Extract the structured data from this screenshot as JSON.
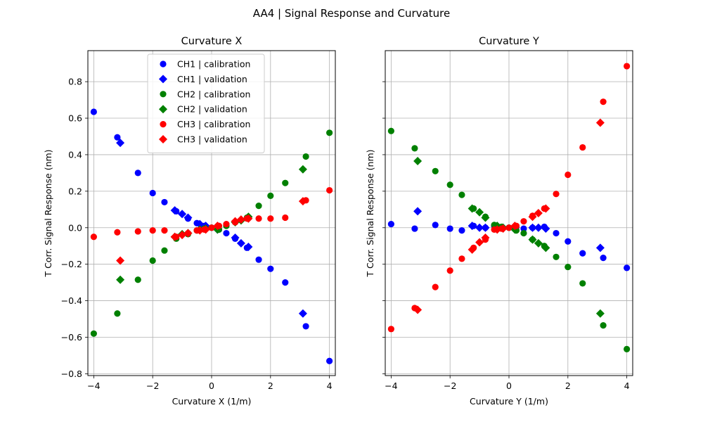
{
  "figure": {
    "suptitle": "AA4 | Signal Response and Curvature"
  },
  "legend_entries": [
    {
      "label": "CH1 | calibration",
      "color": "#0000ff",
      "marker": "circle"
    },
    {
      "label": "CH1 | validation",
      "color": "#0000ff",
      "marker": "diamond"
    },
    {
      "label": "CH2 | calibration",
      "color": "#008000",
      "marker": "circle"
    },
    {
      "label": "CH2 | validation",
      "color": "#008000",
      "marker": "diamond"
    },
    {
      "label": "CH3 | calibration",
      "color": "#ff0000",
      "marker": "circle"
    },
    {
      "label": "CH3 | validation",
      "color": "#ff0000",
      "marker": "diamond"
    }
  ],
  "chart_data": [
    {
      "type": "scatter",
      "title": "Curvature X",
      "xlabel": "Curvature X (1/m)",
      "ylabel": "T Corr. Signal Response (nm)",
      "xlim": [
        -4.2,
        4.2
      ],
      "ylim": [
        -0.81,
        0.97
      ],
      "xticks": [
        -4,
        -2,
        0,
        2,
        4
      ],
      "yticks": [
        -0.8,
        -0.6,
        -0.4,
        -0.2,
        0.0,
        0.2,
        0.4,
        0.6,
        0.8
      ],
      "xtick_labels": [
        "−4",
        "−2",
        "0",
        "2",
        "4"
      ],
      "ytick_labels": [
        "−0.8",
        "−0.6",
        "−0.4",
        "−0.2",
        "0.0",
        "0.2",
        "0.4",
        "0.6",
        "0.8"
      ],
      "ytick_labels_visible": true,
      "grid": true,
      "legend": "upper center",
      "series": [
        {
          "name": "CH1 | calibration",
          "color": "#0000ff",
          "marker": "circle",
          "x": [
            -4,
            -3.2,
            -2.5,
            -2,
            -1.6,
            -1.2,
            -0.8,
            -0.5,
            -0.25,
            0,
            0.25,
            0.5,
            0.8,
            1.2,
            1.6,
            2,
            2.5,
            3.2,
            4
          ],
          "y": [
            0.635,
            0.495,
            0.3,
            0.19,
            0.14,
            0.09,
            0.05,
            0.025,
            0.01,
            0.0,
            -0.01,
            -0.03,
            -0.06,
            -0.11,
            -0.175,
            -0.225,
            -0.3,
            -0.54,
            -0.73
          ]
        },
        {
          "name": "CH1 | validation",
          "color": "#0000ff",
          "marker": "diamond",
          "x": [
            -3.1,
            -1.25,
            -1.0,
            -0.8,
            -0.4,
            -0.2,
            0.2,
            0.8,
            1.0,
            1.25,
            3.1
          ],
          "y": [
            0.465,
            0.095,
            0.075,
            0.055,
            0.02,
            0.01,
            -0.01,
            -0.055,
            -0.085,
            -0.105,
            -0.47
          ]
        },
        {
          "name": "CH2 | calibration",
          "color": "#008000",
          "marker": "circle",
          "x": [
            -4,
            -3.2,
            -2.5,
            -2,
            -1.6,
            -1.2,
            -0.8,
            -0.5,
            -0.25,
            0,
            0.25,
            0.5,
            0.8,
            1.2,
            1.6,
            2,
            2.5,
            3.2,
            4
          ],
          "y": [
            -0.58,
            -0.47,
            -0.285,
            -0.18,
            -0.125,
            -0.06,
            -0.035,
            -0.015,
            -0.005,
            0.0,
            -0.01,
            0.01,
            0.03,
            0.055,
            0.12,
            0.175,
            0.245,
            0.39,
            0.52
          ]
        },
        {
          "name": "CH2 | validation",
          "color": "#008000",
          "marker": "diamond",
          "x": [
            -3.1,
            -1.25,
            -1.0,
            -0.8,
            -0.4,
            -0.2,
            0.2,
            0.8,
            1.0,
            1.25,
            3.1
          ],
          "y": [
            -0.285,
            -0.05,
            -0.035,
            -0.03,
            -0.01,
            -0.005,
            -0.01,
            0.03,
            0.04,
            0.06,
            0.32
          ]
        },
        {
          "name": "CH3 | calibration",
          "color": "#ff0000",
          "marker": "circle",
          "x": [
            -4,
            -3.2,
            -2.5,
            -2,
            -1.6,
            -1.2,
            -0.8,
            -0.5,
            -0.25,
            0,
            0.25,
            0.5,
            0.8,
            1.2,
            1.6,
            2,
            2.5,
            3.2,
            4
          ],
          "y": [
            -0.05,
            -0.025,
            -0.02,
            -0.015,
            -0.015,
            -0.05,
            -0.03,
            -0.015,
            -0.01,
            0.0,
            0.01,
            0.02,
            0.03,
            0.05,
            0.05,
            0.05,
            0.055,
            0.15,
            0.205
          ]
        },
        {
          "name": "CH3 | validation",
          "color": "#ff0000",
          "marker": "diamond",
          "x": [
            -3.1,
            -1.25,
            -1.0,
            -0.8,
            -0.4,
            -0.2,
            0.2,
            0.8,
            1.0,
            1.25,
            3.1
          ],
          "y": [
            -0.18,
            -0.05,
            -0.04,
            -0.03,
            -0.015,
            -0.01,
            0.01,
            0.035,
            0.045,
            0.05,
            0.145
          ]
        }
      ]
    },
    {
      "type": "scatter",
      "title": "Curvature Y",
      "xlabel": "Curvature Y (1/m)",
      "ylabel": "T Corr. Signal Response (nm)",
      "xlim": [
        -4.2,
        4.2
      ],
      "ylim": [
        -0.81,
        0.97
      ],
      "xticks": [
        -4,
        -2,
        0,
        2,
        4
      ],
      "yticks": [
        -0.8,
        -0.6,
        -0.4,
        -0.2,
        0.0,
        0.2,
        0.4,
        0.6,
        0.8
      ],
      "xtick_labels": [
        "−4",
        "−2",
        "0",
        "2",
        "4"
      ],
      "ytick_labels": [],
      "ytick_labels_visible": false,
      "grid": true,
      "legend": "none",
      "series": [
        {
          "name": "CH1 | calibration",
          "color": "#0000ff",
          "marker": "circle",
          "x": [
            -4,
            -3.2,
            -2.5,
            -2,
            -1.6,
            -1.2,
            -0.8,
            -0.5,
            -0.25,
            0,
            0.25,
            0.5,
            0.8,
            1.2,
            1.6,
            2,
            2.5,
            3.2,
            4
          ],
          "y": [
            0.02,
            -0.005,
            0.015,
            -0.005,
            -0.015,
            0.01,
            0.0,
            0.01,
            0.0,
            0.0,
            0.005,
            -0.005,
            0.0,
            0.005,
            -0.03,
            -0.075,
            -0.14,
            -0.165,
            -0.22
          ]
        },
        {
          "name": "CH1 | validation",
          "color": "#0000ff",
          "marker": "diamond",
          "x": [
            -3.1,
            -1.25,
            -1.0,
            -0.8,
            -0.4,
            -0.2,
            0.2,
            0.8,
            1.0,
            1.25,
            3.1
          ],
          "y": [
            0.09,
            0.01,
            0.0,
            0.0,
            -0.005,
            0.0,
            0.005,
            0.0,
            0.0,
            -0.005,
            -0.11
          ]
        },
        {
          "name": "CH2 | calibration",
          "color": "#008000",
          "marker": "circle",
          "x": [
            -4,
            -3.2,
            -2.5,
            -2,
            -1.6,
            -1.2,
            -0.8,
            -0.5,
            -0.25,
            0,
            0.25,
            0.5,
            0.8,
            1.2,
            1.6,
            2,
            2.5,
            3.2,
            4
          ],
          "y": [
            0.53,
            0.435,
            0.31,
            0.235,
            0.18,
            0.105,
            0.06,
            0.015,
            0.005,
            0.0,
            -0.015,
            -0.03,
            -0.065,
            -0.1,
            -0.16,
            -0.215,
            -0.305,
            -0.535,
            -0.665
          ]
        },
        {
          "name": "CH2 | validation",
          "color": "#008000",
          "marker": "diamond",
          "x": [
            -3.1,
            -1.25,
            -1.0,
            -0.8,
            -0.4,
            -0.2,
            0.2,
            0.8,
            1.0,
            1.25,
            3.1
          ],
          "y": [
            0.365,
            0.105,
            0.085,
            0.055,
            0.01,
            0.0,
            -0.01,
            -0.065,
            -0.085,
            -0.11,
            -0.47
          ]
        },
        {
          "name": "CH3 | calibration",
          "color": "#ff0000",
          "marker": "circle",
          "x": [
            -4,
            -3.2,
            -2.5,
            -2,
            -1.6,
            -1.2,
            -0.8,
            -0.5,
            -0.25,
            0,
            0.25,
            0.5,
            0.8,
            1.2,
            1.6,
            2,
            2.5,
            3.2,
            4
          ],
          "y": [
            -0.555,
            -0.44,
            -0.325,
            -0.235,
            -0.17,
            -0.11,
            -0.065,
            -0.01,
            -0.005,
            0.0,
            0.01,
            0.035,
            0.065,
            0.105,
            0.185,
            0.29,
            0.44,
            0.69,
            0.885
          ]
        },
        {
          "name": "CH3 | validation",
          "color": "#ff0000",
          "marker": "diamond",
          "x": [
            -3.1,
            -1.25,
            -1.0,
            -0.8,
            -0.4,
            -0.2,
            0.2,
            0.8,
            1.0,
            1.25,
            3.1
          ],
          "y": [
            -0.45,
            -0.12,
            -0.08,
            -0.055,
            -0.01,
            -0.005,
            0.01,
            0.06,
            0.08,
            0.105,
            0.575
          ]
        }
      ]
    }
  ]
}
